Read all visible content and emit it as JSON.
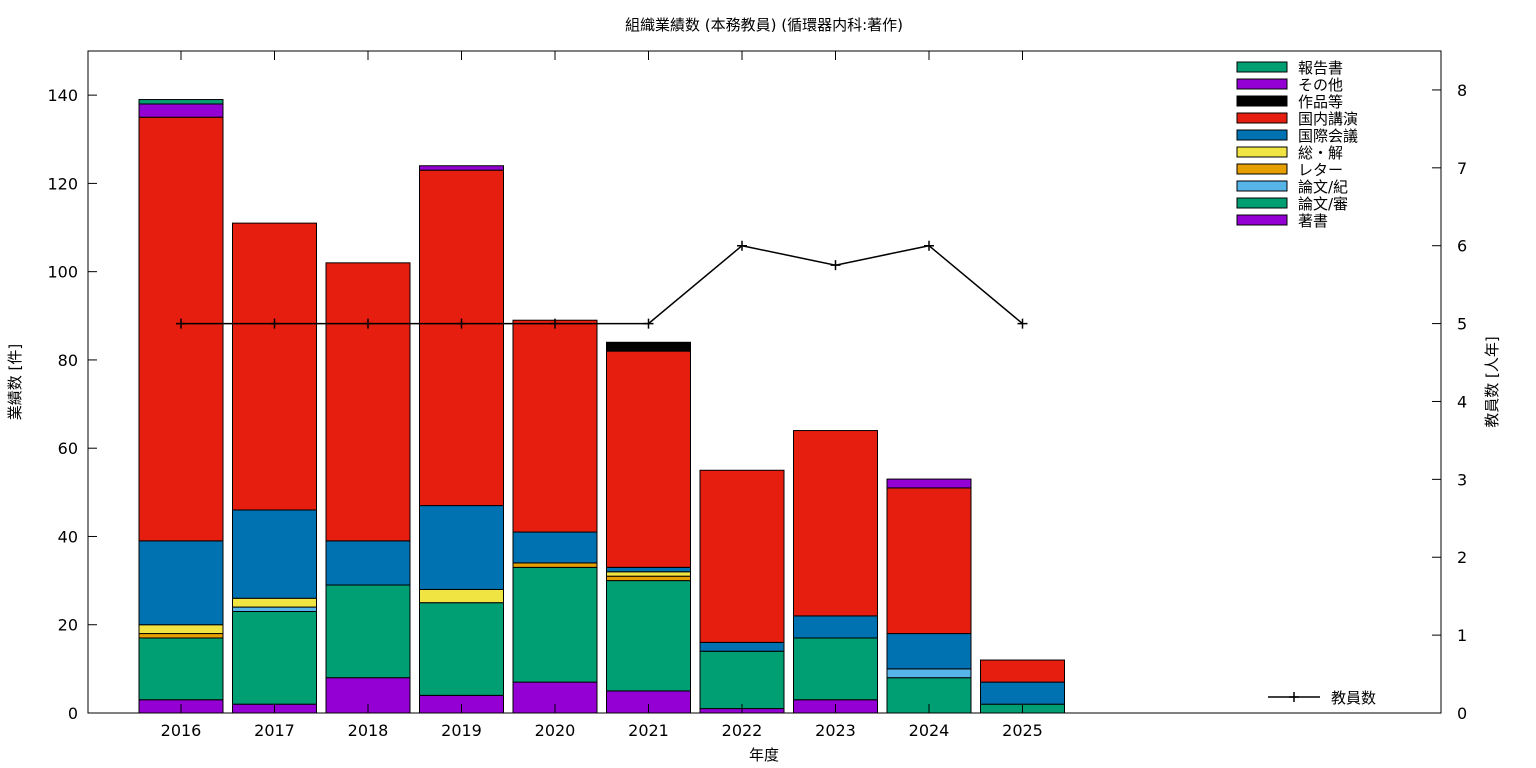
{
  "chart_data": {
    "type": "bar",
    "stacked": true,
    "title": "組織業績数 (本務教員) (循環器内科:著作)",
    "xlabel": "年度",
    "ylabel": "業績数 [件]",
    "y2label": "教員数 [人年]",
    "ylim": [
      0,
      150
    ],
    "yticks": [
      0,
      20,
      40,
      60,
      80,
      100,
      120,
      140
    ],
    "y2lim": [
      0,
      8.5
    ],
    "y2ticks": [
      0,
      1,
      2,
      3,
      4,
      5,
      6,
      7,
      8
    ],
    "grid": false,
    "legend_position": "top-right",
    "categories": [
      "2016",
      "2017",
      "2018",
      "2019",
      "2020",
      "2021",
      "2022",
      "2023",
      "2024",
      "2025"
    ],
    "series": [
      {
        "name": "著書",
        "color": "#9400d3",
        "values": [
          3,
          2,
          8,
          4,
          7,
          5,
          1,
          3,
          0,
          0
        ]
      },
      {
        "name": "論文/審",
        "color": "#009e73",
        "values": [
          14,
          21,
          21,
          21,
          26,
          25,
          13,
          14,
          8,
          2
        ]
      },
      {
        "name": "論文/紀",
        "color": "#56b4e9",
        "values": [
          0,
          1,
          0,
          0,
          0,
          0,
          0,
          0,
          2,
          0
        ]
      },
      {
        "name": "レター",
        "color": "#e69f00",
        "values": [
          1,
          0,
          0,
          0,
          1,
          1,
          0,
          0,
          0,
          0
        ]
      },
      {
        "name": "総・解",
        "color": "#f0e442",
        "values": [
          2,
          2,
          0,
          3,
          0,
          1,
          0,
          0,
          0,
          0
        ]
      },
      {
        "name": "国際会議",
        "color": "#0072b2",
        "values": [
          19,
          20,
          10,
          19,
          7,
          1,
          2,
          5,
          8,
          5
        ]
      },
      {
        "name": "国内講演",
        "color": "#e51e10",
        "values": [
          96,
          65,
          63,
          76,
          48,
          49,
          39,
          42,
          33,
          5
        ]
      },
      {
        "name": "作品等",
        "color": "#000000",
        "values": [
          0,
          0,
          0,
          0,
          0,
          2,
          0,
          0,
          0,
          0
        ]
      },
      {
        "name": "その他",
        "color": "#9400d3",
        "values": [
          3,
          0,
          0,
          1,
          0,
          0,
          0,
          0,
          2,
          0
        ]
      },
      {
        "name": "報告書",
        "color": "#009e73",
        "values": [
          1,
          0,
          0,
          0,
          0,
          0,
          0,
          0,
          0,
          0
        ]
      }
    ],
    "line_series": {
      "name": "教員数",
      "axis": "y2",
      "color": "#000000",
      "values": [
        5,
        5,
        5,
        5,
        5,
        5,
        6,
        5.75,
        6,
        5
      ]
    }
  }
}
